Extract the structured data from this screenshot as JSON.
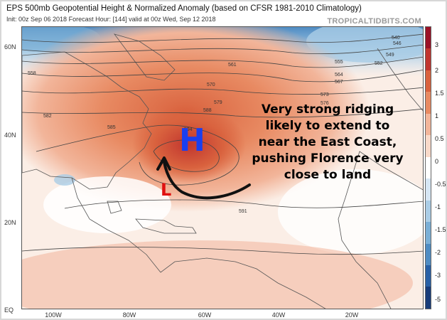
{
  "header": {
    "title": "EPS 500mb Geopotential Height & Normalized Anomaly (based on CFSR 1981-2010 Climatology)",
    "subtitle": "Init: 00z Sep 06 2018   Forecast Hour: [144]   valid at 00z Wed, Sep 12 2018",
    "site": "TROPICALTIDBITS.COM"
  },
  "axes": {
    "lat_labels": [
      "60N",
      "40N",
      "20N",
      "EQ"
    ],
    "lon_labels": [
      "100W",
      "80W",
      "60W",
      "40W",
      "20W"
    ]
  },
  "colorbar": {
    "ticks": [
      "3",
      "2",
      "1.5",
      "1",
      "0.5",
      "0",
      "-0.5",
      "-1",
      "-1.5",
      "-2",
      "-3",
      "-5"
    ],
    "colors": [
      "#9b1126",
      "#c1352e",
      "#d9623e",
      "#e88a62",
      "#f2b59a",
      "#f8d9c9",
      "#ffffff",
      "#d6e6f4",
      "#aacde6",
      "#7aafd6",
      "#4f8cc3",
      "#2860a6",
      "#173c7a"
    ]
  },
  "height_labels": [
    "540",
    "546",
    "549",
    "552",
    "555",
    "558",
    "561",
    "564",
    "567",
    "570",
    "573",
    "576",
    "579",
    "582",
    "585",
    "588",
    "591",
    "594"
  ],
  "markers": {
    "high": "H",
    "low": "L"
  },
  "annotation": {
    "text_lines": [
      "Very strong ridging",
      "likely to extend to",
      "near the East Coast,",
      "pushing Florence very",
      "close to land"
    ]
  },
  "colors": {
    "high_marker": "#1a3ff0",
    "low_marker": "#e01010",
    "anomaly_positive": "#e88a62",
    "anomaly_negative": "#4f8cc3"
  }
}
